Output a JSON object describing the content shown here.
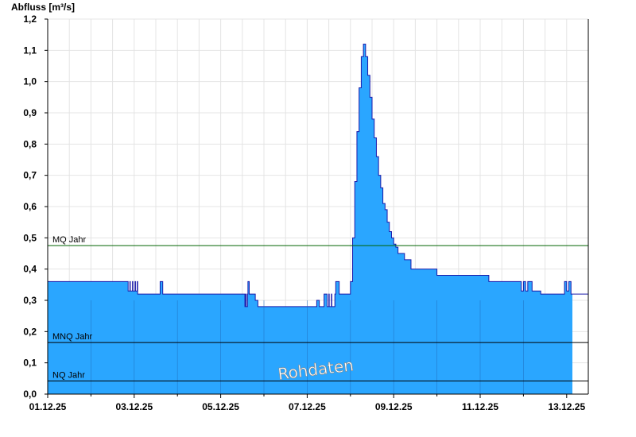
{
  "chart_data": {
    "type": "area",
    "ylabel": "Abfluss [m³/s]",
    "ylim": [
      0,
      1.2
    ],
    "xlim": [
      "01.12.25",
      "13.12.25 + 12h"
    ],
    "yticks": [
      "0,0",
      "0,1",
      "0,2",
      "0,3",
      "0,4",
      "0,5",
      "0,6",
      "0,7",
      "0,8",
      "0,9",
      "1,0",
      "1,1",
      "1,2"
    ],
    "xticks": [
      "01.12.25",
      "03.12.25",
      "05.12.25",
      "07.12.25",
      "09.12.25",
      "11.12.25",
      "13.12.25"
    ],
    "grid": true,
    "fill_color": "#2aa6ff",
    "line_color": "#1a1aaa",
    "watermark": "Rohdaten",
    "reference_lines": [
      {
        "label": "MQ Jahr",
        "value": 0.475,
        "color": "#006400"
      },
      {
        "label": "MNQ Jahr",
        "value": 0.165,
        "color": "#000000"
      },
      {
        "label": "NQ Jahr",
        "value": 0.042,
        "color": "#000000"
      }
    ],
    "series": [
      {
        "x_days": [
          0,
          1.85,
          1.86,
          1.9,
          1.91,
          1.96,
          1.97,
          2.02,
          2.03,
          2.07,
          2.08,
          2.58,
          2.6,
          2.64,
          2.66,
          4.55,
          4.56,
          4.58,
          4.59,
          4.62,
          4.63,
          4.65,
          4.66,
          4.78,
          4.8,
          4.84,
          4.86,
          4.98,
          4.99,
          5.02,
          5.03,
          5.16,
          5.18,
          6.2,
          6.22,
          6.26,
          6.28,
          6.38,
          6.39,
          6.45,
          6.46,
          6.5,
          6.51,
          6.56,
          6.57,
          6.64,
          6.66,
          6.72,
          6.74,
          7.0,
          7.05,
          7.1,
          7.15,
          7.2,
          7.25,
          7.3,
          7.35,
          7.4,
          7.45,
          7.5,
          7.55,
          7.6,
          7.65,
          7.7,
          7.75,
          7.8,
          7.85,
          7.9,
          7.95,
          8.0,
          8.05,
          8.1,
          8.15,
          8.2,
          8.25,
          8.3,
          8.4,
          8.5,
          8.6,
          8.7,
          8.8,
          9.0,
          9.2,
          9.6,
          10.0,
          10.1,
          10.2,
          10.3,
          10.5,
          10.9,
          10.95,
          11.0,
          11.05,
          11.1,
          11.2,
          11.3,
          11.4,
          11.5,
          11.9,
          11.95,
          12.0,
          12.05,
          12.1,
          12.5
        ],
        "values": [
          0.36,
          0.36,
          0.33,
          0.36,
          0.33,
          0.36,
          0.33,
          0.36,
          0.33,
          0.36,
          0.32,
          0.32,
          0.36,
          0.36,
          0.32,
          0.32,
          0.28,
          0.32,
          0.28,
          0.32,
          0.36,
          0.36,
          0.32,
          0.32,
          0.3,
          0.3,
          0.28,
          0.28,
          0.28,
          0.28,
          0.28,
          0.28,
          0.28,
          0.28,
          0.3,
          0.3,
          0.28,
          0.28,
          0.32,
          0.32,
          0.28,
          0.32,
          0.28,
          0.32,
          0.28,
          0.32,
          0.36,
          0.36,
          0.32,
          0.36,
          0.5,
          0.68,
          0.84,
          0.98,
          1.08,
          1.12,
          1.08,
          1.02,
          0.95,
          0.88,
          0.82,
          0.76,
          0.7,
          0.66,
          0.61,
          0.59,
          0.55,
          0.52,
          0.5,
          0.48,
          0.47,
          0.45,
          0.45,
          0.45,
          0.43,
          0.43,
          0.4,
          0.4,
          0.4,
          0.4,
          0.4,
          0.38,
          0.38,
          0.38,
          0.38,
          0.38,
          0.36,
          0.36,
          0.36,
          0.36,
          0.33,
          0.36,
          0.33,
          0.36,
          0.33,
          0.33,
          0.32,
          0.32,
          0.32,
          0.36,
          0.33,
          0.36,
          0.32,
          0.32
        ],
        "note": ""
      }
    ]
  }
}
